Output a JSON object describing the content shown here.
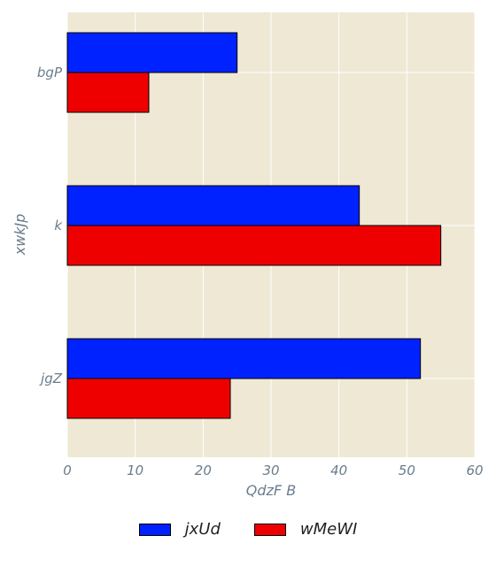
{
  "chart_data": {
    "type": "bar",
    "orientation": "horizontal",
    "categories": [
      "bgP",
      "k",
      "jgZ"
    ],
    "series": [
      {
        "name": "jxUd",
        "values": [
          25,
          43,
          52
        ],
        "color": "#0022ff"
      },
      {
        "name": "wMeWI",
        "values": [
          12,
          55,
          24
        ],
        "color": "#ee0000"
      }
    ],
    "xlabel": "QdzF B",
    "ylabel": "xwkJp",
    "xlim": [
      0,
      60
    ],
    "xticks": [
      0,
      10,
      20,
      30,
      40,
      50,
      60
    ],
    "grid": true,
    "background": "#eee8d5",
    "legend_position": "bottom"
  }
}
